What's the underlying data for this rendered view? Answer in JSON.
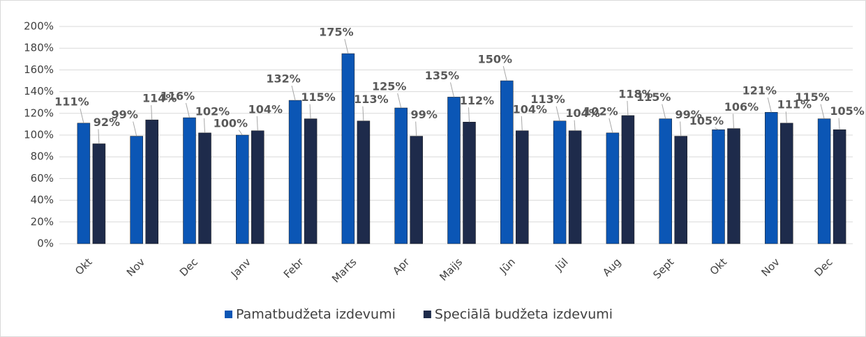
{
  "chart_data": {
    "type": "bar",
    "categories": [
      "Okt",
      "Nov",
      "Dec",
      "Janv",
      "Febr",
      "Marts",
      "Apr",
      "Maijs",
      "Jūn",
      "Jūl",
      "Aug",
      "Sept",
      "Okt",
      "Nov",
      "Dec"
    ],
    "series": [
      {
        "name": "Pamatbudžeta izdevumi",
        "color": "#0b56b5",
        "values": [
          111,
          99,
          116,
          100,
          132,
          175,
          125,
          135,
          150,
          113,
          102,
          115,
          105,
          121,
          115
        ],
        "value_labels": [
          "111%",
          "99%",
          "116%",
          "100%",
          "132%",
          "175%",
          "125%",
          "135%",
          "150%",
          "113%",
          "102%",
          "115%",
          "105%",
          "121%",
          "115%"
        ]
      },
      {
        "name": "Speciālā budžeta izdevumi",
        "color": "#1e2b4b",
        "values": [
          92,
          114,
          102,
          104,
          115,
          113,
          99,
          112,
          104,
          104,
          118,
          99,
          106,
          111,
          105
        ],
        "value_labels": [
          "92%",
          "114%",
          "102%",
          "104%",
          "115%",
          "113%",
          "99%",
          "112%",
          "104%",
          "104%",
          "118%",
          "99%",
          "106%",
          "111%",
          "105%"
        ]
      }
    ],
    "ylim": [
      0,
      200
    ],
    "yticks": [
      {
        "value": 0,
        "label": "0%"
      },
      {
        "value": 20,
        "label": "20%"
      },
      {
        "value": 40,
        "label": "40%"
      },
      {
        "value": 60,
        "label": "60%"
      },
      {
        "value": 80,
        "label": "80%"
      },
      {
        "value": 100,
        "label": "100%"
      },
      {
        "value": 120,
        "label": "120%"
      },
      {
        "value": 140,
        "label": "140%"
      },
      {
        "value": 160,
        "label": "160%"
      },
      {
        "value": 180,
        "label": "180%"
      },
      {
        "value": 200,
        "label": "200%"
      }
    ],
    "grid": true,
    "legend": "bottom"
  }
}
